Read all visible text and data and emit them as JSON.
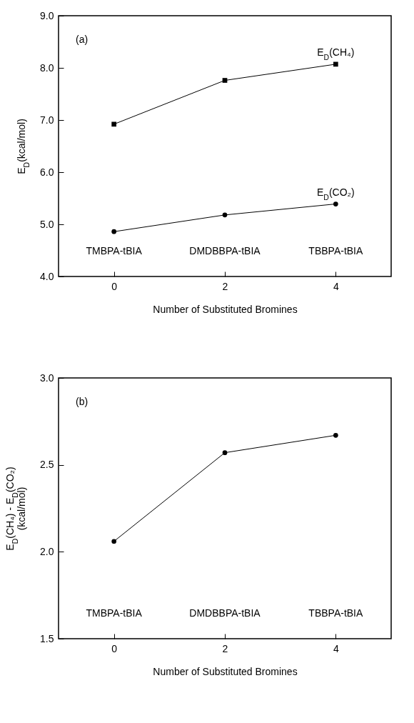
{
  "chart_data": [
    {
      "type": "line",
      "xlabel": "Number of Substituted Bromines",
      "ylabel": "E$_{D}$(kcal/mol)",
      "x": [
        0,
        2,
        4
      ],
      "xlim": [
        -1,
        5
      ],
      "xticks": [
        0,
        2,
        4
      ],
      "ylim": [
        4.0,
        9.0
      ],
      "yticks": [
        {
          "value": 4,
          "label": "4.0"
        },
        {
          "value": 5,
          "label": "5.0"
        },
        {
          "value": 6,
          "label": "6.0"
        },
        {
          "value": 7,
          "label": "7.0"
        },
        {
          "value": 8,
          "label": "8.0"
        },
        {
          "value": 9,
          "label": "9.0"
        }
      ],
      "series": [
        {
          "name": "E$_{D}$(CH₄)",
          "color": "#000000",
          "marker": "square",
          "values": [
            6.92,
            7.76,
            8.07
          ]
        },
        {
          "name": "E$_{D}$(CO₂)",
          "color": "#000000",
          "marker": "circle",
          "values": [
            4.86,
            5.18,
            5.39
          ]
        }
      ],
      "annotations": [
        "(a)",
        "TMBPA-tBIA",
        "DMDBBPA-tBIA",
        "TBBPA-tBIA"
      ],
      "grid": false
    },
    {
      "type": "line",
      "xlabel": "Number of Substituted Bromines",
      "ylabel": "E$_{D}$(CH₄) - E$_{D}$(CO₂) (kcal/mol)",
      "x": [
        0,
        2,
        4
      ],
      "xlim": [
        -1,
        5
      ],
      "xticks": [
        0,
        2,
        4
      ],
      "ylim": [
        1.5,
        3.0
      ],
      "yticks": [
        {
          "value": 1.5,
          "label": "1.5"
        },
        {
          "value": 2,
          "label": "2.0"
        },
        {
          "value": 2.5,
          "label": "2.5"
        },
        {
          "value": 3,
          "label": "3.0"
        }
      ],
      "series": [
        {
          "color": "#000000",
          "marker": "circle",
          "values": [
            2.06,
            2.57,
            2.67
          ]
        }
      ],
      "annotations": [
        "(b)",
        "TMBPA-tBIA",
        "DMDBBPA-tBIA",
        "TBBPA-tBIA"
      ],
      "grid": false
    }
  ]
}
